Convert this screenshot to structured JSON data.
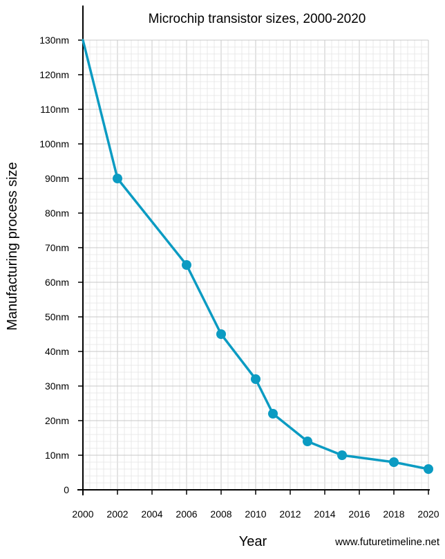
{
  "chart_data": {
    "type": "line",
    "title": "Microchip transistor sizes, 2000-2020",
    "xlabel": "Year",
    "ylabel": "Manufacturing process size",
    "credit": "www.futuretimeline.net",
    "xlim": [
      2000,
      2020
    ],
    "ylim": [
      0,
      130
    ],
    "grid": true,
    "x_ticks": [
      {
        "v": 2000,
        "label": "2000"
      },
      {
        "v": 2002,
        "label": "2002"
      },
      {
        "v": 2004,
        "label": "2004"
      },
      {
        "v": 2006,
        "label": "2006"
      },
      {
        "v": 2008,
        "label": "2008"
      },
      {
        "v": 2010,
        "label": "2010"
      },
      {
        "v": 2012,
        "label": "2012"
      },
      {
        "v": 2014,
        "label": "2014"
      },
      {
        "v": 2016,
        "label": "2016"
      },
      {
        "v": 2018,
        "label": "2018"
      },
      {
        "v": 2020,
        "label": "2020"
      }
    ],
    "y_ticks": [
      {
        "v": 0,
        "label": "0"
      },
      {
        "v": 10,
        "label": "10nm"
      },
      {
        "v": 20,
        "label": "20nm"
      },
      {
        "v": 30,
        "label": "30nm"
      },
      {
        "v": 40,
        "label": "40nm"
      },
      {
        "v": 50,
        "label": "50nm"
      },
      {
        "v": 60,
        "label": "60nm"
      },
      {
        "v": 70,
        "label": "70nm"
      },
      {
        "v": 80,
        "label": "80nm"
      },
      {
        "v": 90,
        "label": "90nm"
      },
      {
        "v": 100,
        "label": "100nm"
      },
      {
        "v": 110,
        "label": "110nm"
      },
      {
        "v": 120,
        "label": "120nm"
      },
      {
        "v": 130,
        "label": "130nm"
      }
    ],
    "series": [
      {
        "color": "#0b9bc2",
        "points": [
          {
            "x": 2000,
            "y": 130,
            "marker": false
          },
          {
            "x": 2002,
            "y": 90,
            "marker": true
          },
          {
            "x": 2006,
            "y": 65,
            "marker": true
          },
          {
            "x": 2008,
            "y": 45,
            "marker": true
          },
          {
            "x": 2010,
            "y": 32,
            "marker": true
          },
          {
            "x": 2011,
            "y": 22,
            "marker": true
          },
          {
            "x": 2013,
            "y": 14,
            "marker": true
          },
          {
            "x": 2015,
            "y": 10,
            "marker": true
          },
          {
            "x": 2018,
            "y": 8,
            "marker": true
          },
          {
            "x": 2020,
            "y": 6,
            "marker": true
          }
        ]
      }
    ]
  }
}
